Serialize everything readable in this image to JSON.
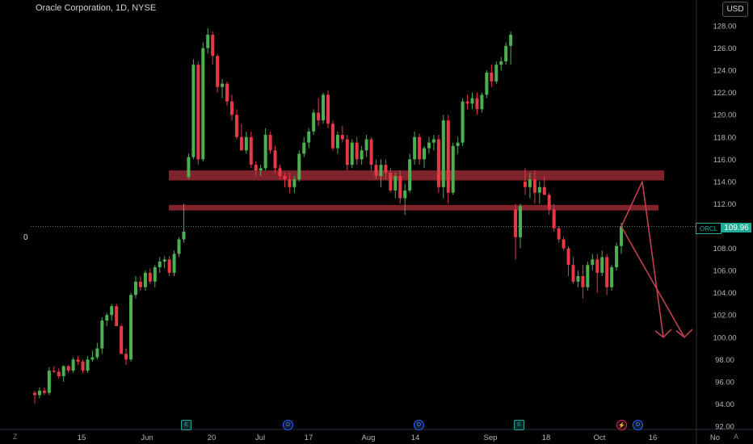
{
  "header": {
    "title": "Oracle Corporation, 1D, NYSE",
    "currency": "USD",
    "zero_label": "0"
  },
  "price_tag": {
    "ticker": "ORCL",
    "price": "109.96"
  },
  "events": [
    {
      "type": "earnings",
      "glyph": "E"
    },
    {
      "type": "dividend",
      "glyph": "D"
    },
    {
      "type": "dividend",
      "glyph": "D"
    },
    {
      "type": "earnings",
      "glyph": "E"
    },
    {
      "type": "split",
      "glyph": "⚡"
    },
    {
      "type": "dividend",
      "glyph": "D"
    }
  ],
  "corner": {
    "left": "Z",
    "right": "A"
  },
  "colors": {
    "up": "#4caf50",
    "down": "#e53945",
    "zone": "#8b2630",
    "arrow": "#c2404d",
    "bg": "#000000"
  },
  "chart_data": {
    "type": "candlestick",
    "symbol": "ORCL",
    "interval": "1D",
    "ylim": [
      92,
      129
    ],
    "y_ticks": [
      "92.00",
      "94.00",
      "96.00",
      "98.00",
      "100.00",
      "102.00",
      "104.00",
      "106.00",
      "108.00",
      "110.00",
      "112.00",
      "114.00",
      "116.00",
      "118.00",
      "120.00",
      "122.00",
      "124.00",
      "126.00",
      "128.00"
    ],
    "x_ticks": [
      "15",
      "Jun",
      "20",
      "Jul",
      "17",
      "Aug",
      "14",
      "Sep",
      "18",
      "Oct",
      "16",
      "No"
    ],
    "last_price": 109.96,
    "candles": [
      [
        95.0,
        95.2,
        94.0,
        94.8
      ],
      [
        94.8,
        95.5,
        94.5,
        95.2
      ],
      [
        95.2,
        95.5,
        94.8,
        95.0
      ],
      [
        95.0,
        97.3,
        94.8,
        97.0
      ],
      [
        97.0,
        97.4,
        96.8,
        96.9
      ],
      [
        96.9,
        97.2,
        96.3,
        96.5
      ],
      [
        96.5,
        97.5,
        96.0,
        97.4
      ],
      [
        97.4,
        97.5,
        96.8,
        97.0
      ],
      [
        97.0,
        98.2,
        96.8,
        98.0
      ],
      [
        98.0,
        98.3,
        97.5,
        97.8
      ],
      [
        97.8,
        98.0,
        96.8,
        97.0
      ],
      [
        97.0,
        98.3,
        96.8,
        98.0
      ],
      [
        98.0,
        98.8,
        97.8,
        98.2
      ],
      [
        98.2,
        99.5,
        98.0,
        99.0
      ],
      [
        99.0,
        101.8,
        98.5,
        101.5
      ],
      [
        101.5,
        102.2,
        101.0,
        102.0
      ],
      [
        102.0,
        103.0,
        101.5,
        102.8
      ],
      [
        102.8,
        103.0,
        101.0,
        101.0
      ],
      [
        101.0,
        101.2,
        98.5,
        98.5
      ],
      [
        98.5,
        99.0,
        97.5,
        98.0
      ],
      [
        98.0,
        104.0,
        97.8,
        103.8
      ],
      [
        103.8,
        105.5,
        103.5,
        105.0
      ],
      [
        105.0,
        105.5,
        104.2,
        104.5
      ],
      [
        104.5,
        106.0,
        104.2,
        105.8
      ],
      [
        105.8,
        106.2,
        104.8,
        105.0
      ],
      [
        105.0,
        106.5,
        104.5,
        106.3
      ],
      [
        106.3,
        107.2,
        105.8,
        106.8
      ],
      [
        106.8,
        107.3,
        106.2,
        107.0
      ],
      [
        107.0,
        107.3,
        105.5,
        105.8
      ],
      [
        105.8,
        107.8,
        105.5,
        107.5
      ],
      [
        107.5,
        109.0,
        107.2,
        108.8
      ],
      [
        108.8,
        112.0,
        108.5,
        109.5
      ],
      [
        114.4,
        116.5,
        114.2,
        116.2
      ],
      [
        116.2,
        125.0,
        116.0,
        124.5
      ],
      [
        124.5,
        124.8,
        115.5,
        116.0
      ],
      [
        116.0,
        126.5,
        115.8,
        126.0
      ],
      [
        126.0,
        127.8,
        125.5,
        127.2
      ],
      [
        127.2,
        127.5,
        124.5,
        125.3
      ],
      [
        125.3,
        125.5,
        122.0,
        122.5
      ],
      [
        122.5,
        123.2,
        121.5,
        122.8
      ],
      [
        122.8,
        123.0,
        120.8,
        121.2
      ],
      [
        121.2,
        121.8,
        119.5,
        120.0
      ],
      [
        120.0,
        120.5,
        117.8,
        118.0
      ],
      [
        118.0,
        119.2,
        116.8,
        116.8
      ],
      [
        116.8,
        118.5,
        116.5,
        118.0
      ],
      [
        118.0,
        118.5,
        115.2,
        115.5
      ],
      [
        115.5,
        115.8,
        114.5,
        115.0
      ],
      [
        115.0,
        115.5,
        114.5,
        115.2
      ],
      [
        115.2,
        118.8,
        115.0,
        118.2
      ],
      [
        118.2,
        118.5,
        116.5,
        116.8
      ],
      [
        116.8,
        117.2,
        114.8,
        115.2
      ],
      [
        115.2,
        115.5,
        114.2,
        114.5
      ],
      [
        114.5,
        114.8,
        113.5,
        114.2
      ],
      [
        114.2,
        114.8,
        113.0,
        113.5
      ],
      [
        113.5,
        114.5,
        113.0,
        114.2
      ],
      [
        114.2,
        116.8,
        114.0,
        116.5
      ],
      [
        116.5,
        118.0,
        116.2,
        117.5
      ],
      [
        117.5,
        118.8,
        117.0,
        118.5
      ],
      [
        118.5,
        120.5,
        118.2,
        120.2
      ],
      [
        120.2,
        121.5,
        119.0,
        119.5
      ],
      [
        119.5,
        122.0,
        119.2,
        121.8
      ],
      [
        121.8,
        122.2,
        118.8,
        119.2
      ],
      [
        119.2,
        119.5,
        116.8,
        117.0
      ],
      [
        117.0,
        118.5,
        116.5,
        118.2
      ],
      [
        118.2,
        119.0,
        117.5,
        117.8
      ],
      [
        117.8,
        118.2,
        115.0,
        115.5
      ],
      [
        115.5,
        117.8,
        115.2,
        117.5
      ],
      [
        117.5,
        118.0,
        115.5,
        116.0
      ],
      [
        116.0,
        117.2,
        115.5,
        116.8
      ],
      [
        116.8,
        118.2,
        116.2,
        117.8
      ],
      [
        117.8,
        118.0,
        115.0,
        115.5
      ],
      [
        115.5,
        116.0,
        114.2,
        114.5
      ],
      [
        114.5,
        116.0,
        113.5,
        115.5
      ],
      [
        115.5,
        116.0,
        114.2,
        114.8
      ],
      [
        114.8,
        115.2,
        113.0,
        113.2
      ],
      [
        113.2,
        114.8,
        112.5,
        114.5
      ],
      [
        114.5,
        115.0,
        112.0,
        112.5
      ],
      [
        112.5,
        113.8,
        111.0,
        113.2
      ],
      [
        113.2,
        116.5,
        113.0,
        116.0
      ],
      [
        116.0,
        118.5,
        115.5,
        118.0
      ],
      [
        118.0,
        118.3,
        115.5,
        116.0
      ],
      [
        116.0,
        117.2,
        115.2,
        117.0
      ],
      [
        117.0,
        118.0,
        116.5,
        117.5
      ],
      [
        117.5,
        118.2,
        116.8,
        117.8
      ],
      [
        117.8,
        118.2,
        113.0,
        113.5
      ],
      [
        113.5,
        120.0,
        112.5,
        119.5
      ],
      [
        119.5,
        120.0,
        112.0,
        113.0
      ],
      [
        113.0,
        117.5,
        112.8,
        117.2
      ],
      [
        117.2,
        118.0,
        116.5,
        117.5
      ],
      [
        117.5,
        121.5,
        117.2,
        121.2
      ],
      [
        121.2,
        121.8,
        120.5,
        121.0
      ],
      [
        121.0,
        122.0,
        120.5,
        121.5
      ],
      [
        121.5,
        122.0,
        120.0,
        120.5
      ],
      [
        120.5,
        122.0,
        120.2,
        121.8
      ],
      [
        121.8,
        124.0,
        121.5,
        123.8
      ],
      [
        123.8,
        124.5,
        122.5,
        123.0
      ],
      [
        123.0,
        124.8,
        122.8,
        124.5
      ],
      [
        124.5,
        125.2,
        124.0,
        124.8
      ],
      [
        124.8,
        126.5,
        124.5,
        126.2
      ],
      [
        126.2,
        127.5,
        124.5,
        127.2
      ],
      [
        111.5,
        112.0,
        107.0,
        109.0
      ],
      [
        109.0,
        112.0,
        108.0,
        111.8
      ],
      [
        114.0,
        115.2,
        112.8,
        113.5
      ],
      [
        113.5,
        114.8,
        112.5,
        114.2
      ],
      [
        114.2,
        115.0,
        112.0,
        113.0
      ],
      [
        113.0,
        114.0,
        112.0,
        113.5
      ],
      [
        113.5,
        114.5,
        112.8,
        112.8
      ],
      [
        112.8,
        113.0,
        111.0,
        111.5
      ],
      [
        111.5,
        112.0,
        109.5,
        109.8
      ],
      [
        109.8,
        110.0,
        108.5,
        108.8
      ],
      [
        108.8,
        109.0,
        107.8,
        108.0
      ],
      [
        108.0,
        108.2,
        105.5,
        106.5
      ],
      [
        106.5,
        107.2,
        104.8,
        105.0
      ],
      [
        105.0,
        106.0,
        104.5,
        105.5
      ],
      [
        105.5,
        106.5,
        103.5,
        104.5
      ],
      [
        104.5,
        106.8,
        104.2,
        106.5
      ],
      [
        106.5,
        107.5,
        106.0,
        107.0
      ],
      [
        107.0,
        107.5,
        104.0,
        105.8
      ],
      [
        105.8,
        107.8,
        105.5,
        107.2
      ],
      [
        107.2,
        107.5,
        103.8,
        104.5
      ],
      [
        104.5,
        106.5,
        104.2,
        106.3
      ],
      [
        106.3,
        108.5,
        106.0,
        108.2
      ],
      [
        108.2,
        110.3,
        107.5,
        109.96
      ]
    ],
    "zones": [
      {
        "from": 114.1,
        "to": 115.0,
        "label": ""
      },
      {
        "from": 111.4,
        "to": 111.9,
        "label": ""
      }
    ],
    "projection": [
      {
        "points": [
          [
            0,
            109.96
          ],
          [
            2,
            114.0
          ],
          [
            4,
            100.0
          ]
        ]
      },
      {
        "points": [
          [
            0,
            109.96
          ],
          [
            6,
            100.0
          ]
        ]
      }
    ]
  }
}
